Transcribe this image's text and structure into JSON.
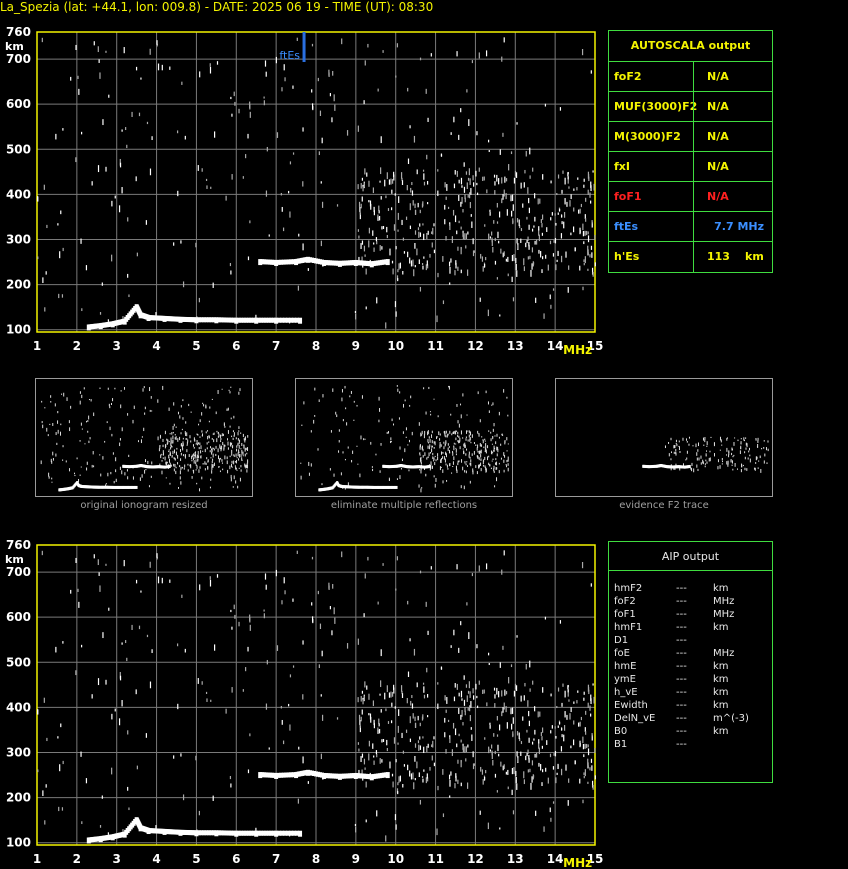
{
  "header": {
    "title": "La_Spezia (lat: +44.1, lon: 009.8) - DATE: 2025 06 19 - TIME (UT): 08:30"
  },
  "autoscala": {
    "title": "AUTOSCALA output",
    "rows": [
      {
        "label": "foF2",
        "value": "N/A",
        "unit": "",
        "color": "#f4f400"
      },
      {
        "label": "MUF(3000)F2",
        "value": "N/A",
        "unit": "",
        "color": "#f4f400"
      },
      {
        "label": "M(3000)F2",
        "value": "N/A",
        "unit": "",
        "color": "#f4f400"
      },
      {
        "label": "fxI",
        "value": "N/A",
        "unit": "",
        "color": "#f4f400"
      },
      {
        "label": "foF1",
        "value": "N/A",
        "unit": "",
        "color": "#ff2020"
      },
      {
        "label": "ftEs",
        "value": "7.7 MHz",
        "unit": "",
        "color": "#3b8fff"
      },
      {
        "label": "h'Es",
        "value": "113",
        "unit": "km",
        "color": "#f4f400"
      }
    ]
  },
  "aip": {
    "title": "AIP output",
    "rows": [
      {
        "label": "hmF2",
        "value": "---",
        "unit": "km"
      },
      {
        "label": "foF2",
        "value": "---",
        "unit": "MHz"
      },
      {
        "label": "foF1",
        "value": "---",
        "unit": "MHz"
      },
      {
        "label": "hmF1",
        "value": "---",
        "unit": "km"
      },
      {
        "label": "D1",
        "value": "---",
        "unit": ""
      },
      {
        "label": "foE",
        "value": "---",
        "unit": "MHz"
      },
      {
        "label": "hmE",
        "value": "---",
        "unit": "km"
      },
      {
        "label": "ymE",
        "value": "---",
        "unit": "km"
      },
      {
        "label": "h_vE",
        "value": "---",
        "unit": "km"
      },
      {
        "label": "Ewidth",
        "value": "---",
        "unit": "km"
      },
      {
        "label": "DelN_vE",
        "value": "---",
        "unit": "m^(-3)"
      },
      {
        "label": "B0",
        "value": "---",
        "unit": "km"
      },
      {
        "label": "B1",
        "value": "---",
        "unit": ""
      }
    ]
  },
  "thumbnails": [
    {
      "caption": "original ionogram resized"
    },
    {
      "caption": "eliminate multiple reflections"
    },
    {
      "caption": "evidence F2 trace"
    }
  ],
  "colors": {
    "axis": "#f4f400",
    "grid": "#7a7a7a",
    "frame": "#3fdc3f",
    "ftes_marker": "#2a6fe0",
    "trace": "#ffffff"
  },
  "chart_data": [
    {
      "type": "scatter",
      "title": "",
      "xlabel": "MHz",
      "ylabel": "km",
      "xlim": [
        1,
        15
      ],
      "ylim": [
        95,
        760
      ],
      "xticks": [
        1,
        2,
        3,
        4,
        5,
        6,
        7,
        8,
        9,
        10,
        11,
        12,
        13,
        14,
        15
      ],
      "yticks": [
        100,
        200,
        300,
        400,
        500,
        600,
        700,
        760
      ],
      "grid": true,
      "marker": {
        "x": 7.7,
        "label": "ftEs"
      },
      "series": [
        {
          "values_desc": "Es trace",
          "x": [
            2.3,
            2.6,
            2.9,
            3.2,
            3.5,
            3.6,
            3.8,
            4.2,
            4.6,
            5.0,
            5.5,
            6.0,
            6.5,
            7.0,
            7.6
          ],
          "y": [
            105,
            108,
            112,
            118,
            150,
            132,
            126,
            124,
            122,
            121,
            121,
            120,
            120,
            120,
            120
          ]
        },
        {
          "values_desc": "F trace",
          "x": [
            6.6,
            7.0,
            7.5,
            7.8,
            8.2,
            8.6,
            9.0,
            9.4,
            9.8
          ],
          "y": [
            250,
            248,
            250,
            255,
            248,
            246,
            248,
            245,
            250
          ]
        }
      ]
    },
    {
      "type": "scatter",
      "title": "",
      "xlabel": "MHz",
      "ylabel": "km",
      "xlim": [
        1,
        15
      ],
      "ylim": [
        95,
        760
      ],
      "xticks": [
        1,
        2,
        3,
        4,
        5,
        6,
        7,
        8,
        9,
        10,
        11,
        12,
        13,
        14,
        15
      ],
      "yticks": [
        100,
        200,
        300,
        400,
        500,
        600,
        700,
        760
      ],
      "grid": true,
      "series": [
        {
          "x": [
            2.3,
            2.6,
            2.9,
            3.2,
            3.5,
            3.6,
            3.8,
            4.2,
            4.6,
            5.0,
            5.5,
            6.0,
            6.5,
            7.0,
            7.6
          ],
          "y": [
            105,
            108,
            112,
            118,
            150,
            132,
            126,
            124,
            122,
            121,
            121,
            120,
            120,
            120,
            120
          ]
        },
        {
          "x": [
            6.6,
            7.0,
            7.5,
            7.8,
            8.2,
            8.6,
            9.0,
            9.4,
            9.8
          ],
          "y": [
            250,
            248,
            250,
            255,
            248,
            246,
            248,
            245,
            250
          ]
        }
      ]
    }
  ]
}
